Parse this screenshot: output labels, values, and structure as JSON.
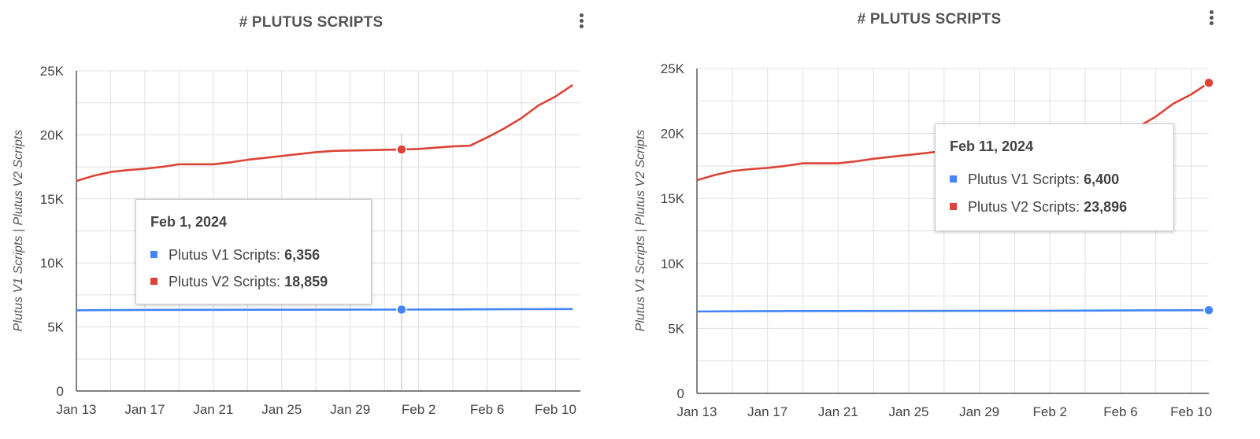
{
  "colors": {
    "v1": "#4285f4",
    "v2": "#db4437",
    "grid": "#e0e0e0",
    "axis": "#333333"
  },
  "icons": {
    "menu": "more-vert-icon"
  },
  "chart_data": [
    {
      "type": "line",
      "title": "# PLUTUS SCRIPTS",
      "ylabel": "Plutus V1 Scripts | Plutus V2 Scripts",
      "ylim": [
        0,
        25000
      ],
      "yticks": [
        "0",
        "5K",
        "10K",
        "15K",
        "20K",
        "25K"
      ],
      "xticks": [
        "Jan 13",
        "Jan 17",
        "Jan 21",
        "Jan 25",
        "Jan 29",
        "Feb 2",
        "Feb 6",
        "Feb 10"
      ],
      "grid": true,
      "series": [
        {
          "name": "Plutus V1 Scripts",
          "color": "#4285f4",
          "x": [
            "2024-01-13",
            "2024-01-17",
            "2024-01-21",
            "2024-01-25",
            "2024-01-29",
            "2024-02-01",
            "2024-02-04",
            "2024-02-08",
            "2024-02-11"
          ],
          "values": [
            6300,
            6330,
            6340,
            6345,
            6350,
            6356,
            6370,
            6390,
            6400
          ]
        },
        {
          "name": "Plutus V2 Scripts",
          "color": "#db4437",
          "x": [
            "2024-01-13",
            "2024-01-14",
            "2024-01-15",
            "2024-01-16",
            "2024-01-17",
            "2024-01-18",
            "2024-01-19",
            "2024-01-20",
            "2024-01-21",
            "2024-01-22",
            "2024-01-23",
            "2024-01-24",
            "2024-01-25",
            "2024-01-26",
            "2024-01-27",
            "2024-01-28",
            "2024-01-29",
            "2024-01-30",
            "2024-01-31",
            "2024-02-01",
            "2024-02-02",
            "2024-02-03",
            "2024-02-04",
            "2024-02-05",
            "2024-02-06",
            "2024-02-07",
            "2024-02-08",
            "2024-02-09",
            "2024-02-10",
            "2024-02-11"
          ],
          "values": [
            16400,
            16800,
            17100,
            17250,
            17350,
            17500,
            17700,
            17700,
            17700,
            17850,
            18050,
            18200,
            18350,
            18500,
            18650,
            18750,
            18780,
            18800,
            18830,
            18859,
            18900,
            19000,
            19100,
            19150,
            19800,
            20500,
            21300,
            22300,
            23000,
            23896
          ]
        }
      ],
      "highlight_date": "2024-02-01",
      "tooltip": {
        "date": "Feb 1, 2024",
        "v1_label": "Plutus V1 Scripts:",
        "v1_value": "6,356",
        "v2_label": "Plutus V2 Scripts:",
        "v2_value": "18,859"
      }
    },
    {
      "type": "line",
      "title": "# PLUTUS SCRIPTS",
      "ylabel": "Plutus V1 Scripts | Plutus V2 Scripts",
      "ylim": [
        0,
        25000
      ],
      "yticks": [
        "0",
        "5K",
        "10K",
        "15K",
        "20K",
        "25K"
      ],
      "xticks": [
        "Jan 13",
        "Jan 17",
        "Jan 21",
        "Jan 25",
        "Jan 29",
        "Feb 2",
        "Feb 6",
        "Feb 10"
      ],
      "grid": true,
      "series": [
        {
          "name": "Plutus V1 Scripts",
          "color": "#4285f4",
          "x": [
            "2024-01-13",
            "2024-01-17",
            "2024-01-21",
            "2024-01-25",
            "2024-01-29",
            "2024-02-01",
            "2024-02-04",
            "2024-02-08",
            "2024-02-11"
          ],
          "values": [
            6300,
            6330,
            6340,
            6345,
            6350,
            6356,
            6370,
            6390,
            6400
          ]
        },
        {
          "name": "Plutus V2 Scripts",
          "color": "#db4437",
          "x": [
            "2024-01-13",
            "2024-01-14",
            "2024-01-15",
            "2024-01-16",
            "2024-01-17",
            "2024-01-18",
            "2024-01-19",
            "2024-01-20",
            "2024-01-21",
            "2024-01-22",
            "2024-01-23",
            "2024-01-24",
            "2024-01-25",
            "2024-01-26",
            "2024-01-27",
            "2024-01-28",
            "2024-01-29",
            "2024-01-30",
            "2024-01-31",
            "2024-02-01",
            "2024-02-02",
            "2024-02-03",
            "2024-02-04",
            "2024-02-05",
            "2024-02-06",
            "2024-02-07",
            "2024-02-08",
            "2024-02-09",
            "2024-02-10",
            "2024-02-11"
          ],
          "values": [
            16400,
            16800,
            17100,
            17250,
            17350,
            17500,
            17700,
            17700,
            17700,
            17850,
            18050,
            18200,
            18350,
            18500,
            18650,
            18750,
            18780,
            18800,
            18830,
            18859,
            18900,
            19000,
            19100,
            19150,
            19800,
            20500,
            21300,
            22300,
            23000,
            23896
          ]
        }
      ],
      "highlight_date": "2024-02-11",
      "tooltip": {
        "date": "Feb 11, 2024",
        "v1_label": "Plutus V1 Scripts:",
        "v1_value": "6,400",
        "v2_label": "Plutus V2 Scripts:",
        "v2_value": "23,896"
      }
    }
  ]
}
